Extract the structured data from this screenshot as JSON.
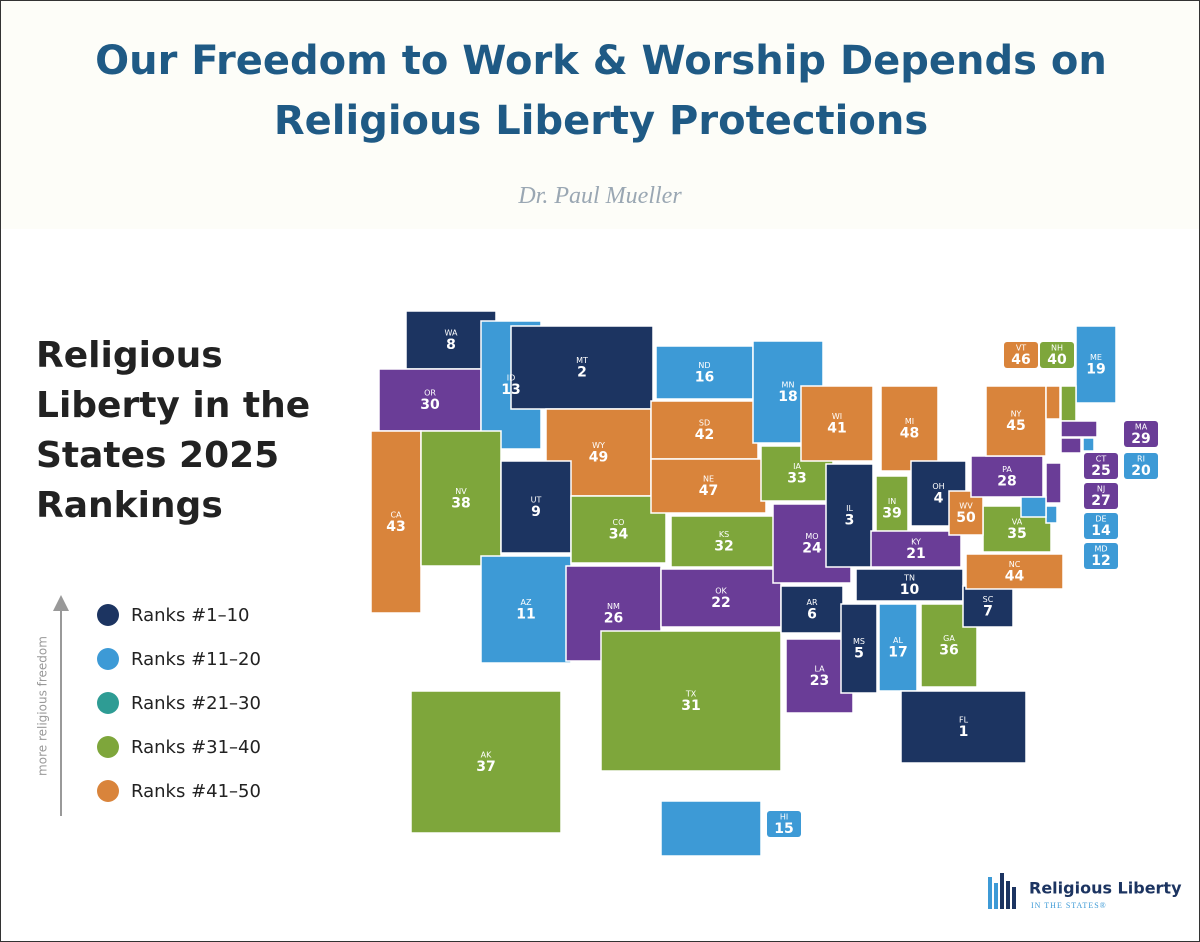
{
  "header": {
    "title": "Our Freedom to Work & Worship Depends on Religious Liberty Protections",
    "author": "Dr. Paul Mueller"
  },
  "map": {
    "heading": "Religious Liberty in the States 2025 Rankings",
    "axis_label": "more religious freedom",
    "legend": [
      {
        "label": "Ranks #1–10",
        "color": "#1c3461",
        "map_color": "#1c3461"
      },
      {
        "label": "Ranks #11–20",
        "color": "#3d9ad6",
        "map_color": "#3d9ad6"
      },
      {
        "label": "Ranks #21–30",
        "color": "#2e9c94",
        "map_color": "#6a3d97"
      },
      {
        "label": "Ranks #31–40",
        "color": "#7ea63b",
        "map_color": "#7ea63b"
      },
      {
        "label": "Ranks #41–50",
        "color": "#d9843b",
        "map_color": "#d9843b"
      }
    ],
    "states": [
      {
        "abbr": "WA",
        "rank": 8
      },
      {
        "abbr": "OR",
        "rank": 30
      },
      {
        "abbr": "CA",
        "rank": 43
      },
      {
        "abbr": "ID",
        "rank": 13
      },
      {
        "abbr": "NV",
        "rank": 38
      },
      {
        "abbr": "MT",
        "rank": 2
      },
      {
        "abbr": "WY",
        "rank": 49
      },
      {
        "abbr": "UT",
        "rank": 9
      },
      {
        "abbr": "AZ",
        "rank": 11
      },
      {
        "abbr": "CO",
        "rank": 34
      },
      {
        "abbr": "NM",
        "rank": 26
      },
      {
        "abbr": "ND",
        "rank": 16
      },
      {
        "abbr": "SD",
        "rank": 42
      },
      {
        "abbr": "NE",
        "rank": 47
      },
      {
        "abbr": "KS",
        "rank": 32
      },
      {
        "abbr": "OK",
        "rank": 22
      },
      {
        "abbr": "TX",
        "rank": 31
      },
      {
        "abbr": "MN",
        "rank": 18
      },
      {
        "abbr": "IA",
        "rank": 33
      },
      {
        "abbr": "MO",
        "rank": 24
      },
      {
        "abbr": "AR",
        "rank": 6
      },
      {
        "abbr": "LA",
        "rank": 23
      },
      {
        "abbr": "WI",
        "rank": 41
      },
      {
        "abbr": "IL",
        "rank": 3
      },
      {
        "abbr": "MI",
        "rank": 48
      },
      {
        "abbr": "IN",
        "rank": 39
      },
      {
        "abbr": "OH",
        "rank": 4
      },
      {
        "abbr": "KY",
        "rank": 21
      },
      {
        "abbr": "TN",
        "rank": 10
      },
      {
        "abbr": "MS",
        "rank": 5
      },
      {
        "abbr": "AL",
        "rank": 17
      },
      {
        "abbr": "GA",
        "rank": 36
      },
      {
        "abbr": "FL",
        "rank": 1
      },
      {
        "abbr": "SC",
        "rank": 7
      },
      {
        "abbr": "NC",
        "rank": 44
      },
      {
        "abbr": "VA",
        "rank": 35
      },
      {
        "abbr": "WV",
        "rank": 50
      },
      {
        "abbr": "PA",
        "rank": 28
      },
      {
        "abbr": "NY",
        "rank": 45
      },
      {
        "abbr": "ME",
        "rank": 19
      },
      {
        "abbr": "VT",
        "rank": 46
      },
      {
        "abbr": "NH",
        "rank": 40
      },
      {
        "abbr": "MA",
        "rank": 29
      },
      {
        "abbr": "CT",
        "rank": 25
      },
      {
        "abbr": "RI",
        "rank": 20
      },
      {
        "abbr": "NJ",
        "rank": 27
      },
      {
        "abbr": "DE",
        "rank": 14
      },
      {
        "abbr": "MD",
        "rank": 12
      },
      {
        "abbr": "AK",
        "rank": 37
      },
      {
        "abbr": "HI",
        "rank": 15
      }
    ]
  },
  "logo": {
    "name": "Religious Liberty",
    "tagline": "IN THE STATES®"
  }
}
